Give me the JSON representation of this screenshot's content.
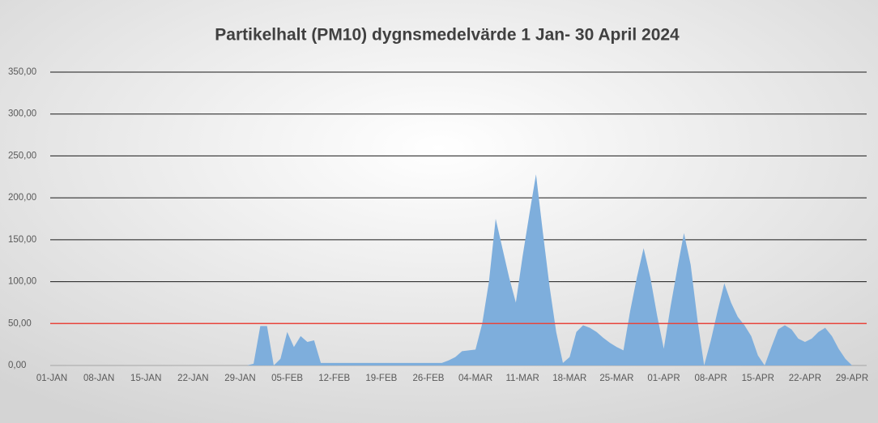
{
  "chart_data": {
    "type": "area",
    "title": "Partikelhalt (PM10) dygnsmedelvärde 1 Jan- 30 April 2024",
    "categories": [
      "01-JAN",
      null,
      null,
      null,
      null,
      null,
      null,
      "08-JAN",
      null,
      null,
      null,
      null,
      null,
      null,
      "15-JAN",
      null,
      null,
      null,
      null,
      null,
      null,
      "22-JAN",
      null,
      null,
      null,
      null,
      null,
      null,
      "29-JAN",
      null,
      null,
      null,
      null,
      null,
      null,
      "05-FEB",
      null,
      null,
      null,
      null,
      null,
      null,
      "12-FEB",
      null,
      null,
      null,
      null,
      null,
      null,
      "19-FEB",
      null,
      null,
      null,
      null,
      null,
      null,
      "26-FEB",
      null,
      null,
      null,
      null,
      null,
      null,
      "04-MAR",
      null,
      null,
      null,
      null,
      null,
      null,
      "11-MAR",
      null,
      null,
      null,
      null,
      null,
      null,
      "18-MAR",
      null,
      null,
      null,
      null,
      null,
      null,
      "25-MAR",
      null,
      null,
      null,
      null,
      null,
      null,
      "01-APR",
      null,
      null,
      null,
      null,
      null,
      null,
      "08-APR",
      null,
      null,
      null,
      null,
      null,
      null,
      "15-APR",
      null,
      null,
      null,
      null,
      null,
      null,
      "22-APR",
      null,
      null,
      null,
      null,
      null,
      null,
      "29-APR",
      null
    ],
    "values": [
      0,
      0,
      0,
      0,
      0,
      0,
      0,
      0,
      0,
      0,
      0,
      0,
      0,
      0,
      0,
      0,
      0,
      0,
      0,
      0,
      0,
      0,
      0,
      0,
      0,
      0,
      0,
      0,
      0,
      0,
      2,
      47,
      47,
      0,
      8,
      40,
      22,
      35,
      28,
      30,
      3,
      3,
      3,
      3,
      3,
      3,
      3,
      3,
      3,
      3,
      3,
      3,
      3,
      3,
      3,
      3,
      3,
      3,
      3,
      6,
      10,
      17,
      18,
      19,
      50,
      100,
      175,
      140,
      105,
      75,
      130,
      180,
      228,
      160,
      95,
      40,
      3,
      10,
      40,
      48,
      45,
      40,
      33,
      27,
      22,
      18,
      65,
      105,
      140,
      105,
      60,
      20,
      70,
      115,
      158,
      120,
      55,
      0,
      30,
      65,
      98,
      75,
      58,
      48,
      35,
      12,
      0,
      22,
      43,
      48,
      43,
      32,
      28,
      32,
      40,
      45,
      35,
      20,
      8,
      0,
      0
    ],
    "color": "#7eaedc",
    "ylim": [
      0,
      350
    ],
    "yticks": [
      {
        "value": 0,
        "label": "0,00"
      },
      {
        "value": 50,
        "label": "50,00"
      },
      {
        "value": 100,
        "label": "100,00"
      },
      {
        "value": 150,
        "label": "150,00"
      },
      {
        "value": 200,
        "label": "200,00"
      },
      {
        "value": 250,
        "label": "250,00"
      },
      {
        "value": 300,
        "label": "300,00"
      },
      {
        "value": 350,
        "label": "350,00"
      }
    ],
    "grid": true,
    "threshold_line": {
      "value": 50,
      "color": "#e8453c"
    }
  }
}
